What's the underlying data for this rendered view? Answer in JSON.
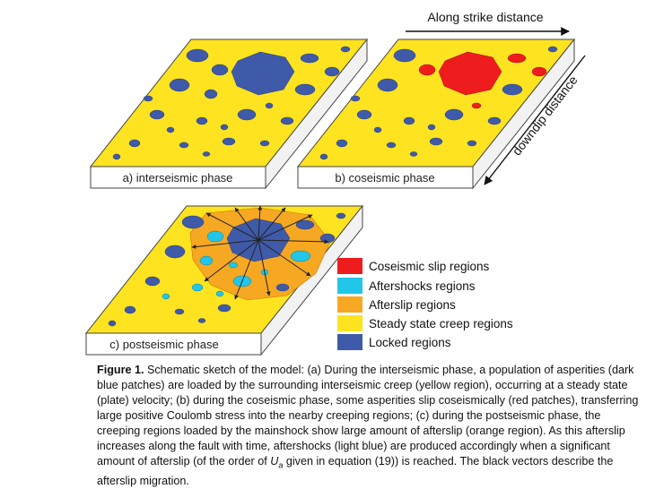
{
  "panels": [
    {
      "id": "a",
      "label": "a) interseismic phase"
    },
    {
      "id": "b",
      "label": "b) coseismic phase"
    },
    {
      "id": "c",
      "label": "c) postseismic phase"
    }
  ],
  "axes": {
    "along_strike": "Along strike distance",
    "downdip": "downdip distance"
  },
  "legend": [
    {
      "key": "coseismic",
      "label": "Coseismic slip regions",
      "color": "#ee1c1c"
    },
    {
      "key": "aftershocks",
      "label": "Aftershocks regions",
      "color": "#22c6e8"
    },
    {
      "key": "afterslip",
      "label": "Afterslip regions",
      "color": "#f7a822"
    },
    {
      "key": "creep",
      "label": "Steady state creep regions",
      "color": "#fde320"
    },
    {
      "key": "locked",
      "label": "Locked regions",
      "color": "#3f5aa8"
    }
  ],
  "caption": {
    "figure_label": "Figure 1.",
    "text_before": " Schematic sketch of the model: (a) During the interseismic phase, a population of asperities (dark blue patches) are loaded by the surrounding interseismic creep (yellow region), occurring at a steady state (plate) velocity; (b) during the coseismic phase, some asperities slip coseismically (red patches), transferring large positive Coulomb stress into the nearby creeping regions; (c) during the postseismic phase, the creeping regions loaded by the mainshock show large amount of afterslip (orange region). As this afterslip increases along the fault with time, aftershocks (light blue) are produced accordingly when a significant amount of afterslip (of the order of ",
    "ua_symbol": "U",
    "ua_subscript": "a",
    "text_after": " given in equation (19)) is reached. The black vectors describe the afterslip migration."
  }
}
